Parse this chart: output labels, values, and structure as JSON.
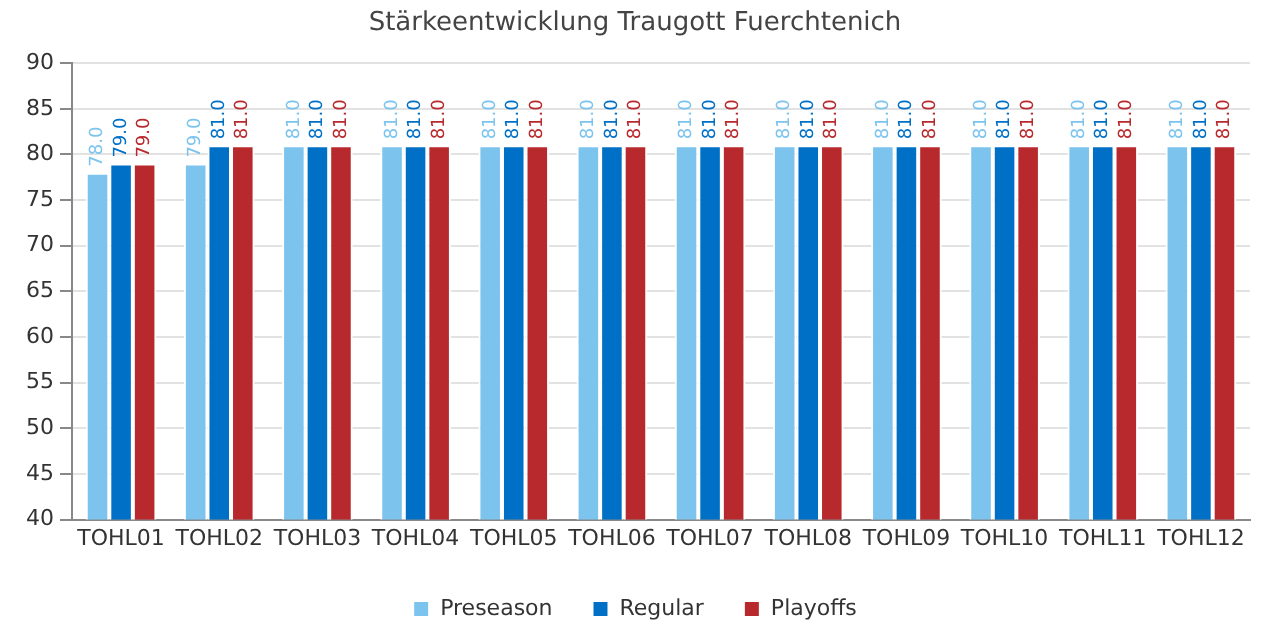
{
  "chart_data": {
    "type": "bar",
    "title": "Stärkeentwicklung Traugott Fuerchtenich",
    "categories": [
      "TOHL01",
      "TOHL02",
      "TOHL03",
      "TOHL04",
      "TOHL05",
      "TOHL06",
      "TOHL07",
      "TOHL08",
      "TOHL09",
      "TOHL10",
      "TOHL11",
      "TOHL12"
    ],
    "series": [
      {
        "name": "Preseason",
        "color": "#7cc4ee",
        "values": [
          78,
          79,
          81,
          81,
          81,
          81,
          81,
          81,
          81,
          81,
          81,
          81
        ],
        "value_labels": [
          "78.0",
          "79.0",
          "81.0",
          "81.0",
          "81.0",
          "81.0",
          "81.0",
          "81.0",
          "81.0",
          "81.0",
          "81.0",
          "81.0"
        ]
      },
      {
        "name": "Regular",
        "color": "#0070c6",
        "values": [
          79,
          81,
          81,
          81,
          81,
          81,
          81,
          81,
          81,
          81,
          81,
          81
        ],
        "value_labels": [
          "79.0",
          "81.0",
          "81.0",
          "81.0",
          "81.0",
          "81.0",
          "81.0",
          "81.0",
          "81.0",
          "81.0",
          "81.0",
          "81.0"
        ]
      },
      {
        "name": "Playoffs",
        "color": "#b8292d",
        "values": [
          79,
          81,
          81,
          81,
          81,
          81,
          81,
          81,
          81,
          81,
          81,
          81
        ],
        "value_labels": [
          "79.0",
          "81.0",
          "81.0",
          "81.0",
          "81.0",
          "81.0",
          "81.0",
          "81.0",
          "81.0",
          "81.0",
          "81.0",
          "81.0"
        ]
      }
    ],
    "ylim": [
      40,
      90
    ],
    "yticks": [
      40,
      45,
      50,
      55,
      60,
      65,
      70,
      75,
      80,
      85,
      90
    ],
    "grid": "y",
    "legend": "bottom"
  }
}
